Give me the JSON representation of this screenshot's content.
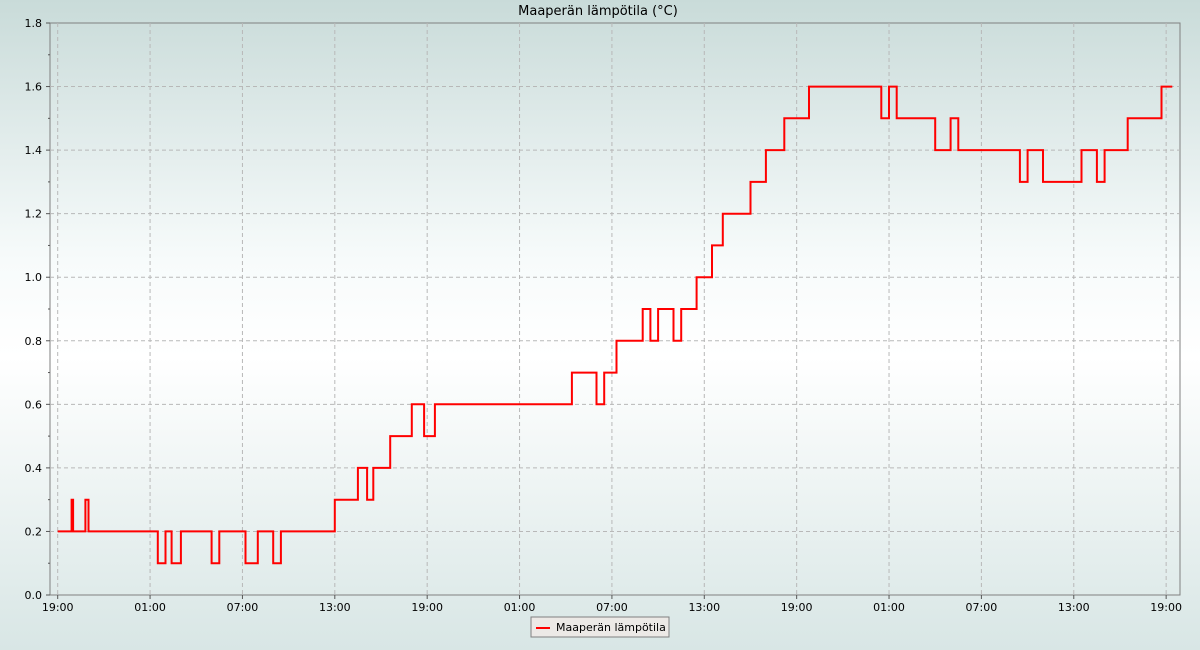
{
  "chart_data": {
    "type": "line",
    "title": "Maaperän lämpötila (°C)",
    "xlabel": "",
    "ylabel": "",
    "ylim": [
      0,
      1.8
    ],
    "yticks": [
      "0.0",
      "0.2",
      "0.4",
      "0.6",
      "0.8",
      "1.0",
      "1.2",
      "1.4",
      "1.6",
      "1.8"
    ],
    "xticks": [
      "19:00",
      "01:00",
      "07:00",
      "13:00",
      "19:00",
      "01:00",
      "07:00",
      "13:00",
      "19:00",
      "01:00",
      "07:00",
      "13:00",
      "19:00"
    ],
    "xtick_hours": [
      0,
      6,
      12,
      18,
      24,
      30,
      36,
      42,
      48,
      54,
      60,
      66,
      72
    ],
    "xlim_hours": [
      -0.5,
      72.9
    ],
    "grid": true,
    "legend_position": "bottom-center",
    "series": [
      {
        "name": "Maaperän lämpötila",
        "color": "#ff0000",
        "x_hours": [
          0,
          0.9,
          1.0,
          1.8,
          2.0,
          6.3,
          6.5,
          7.0,
          7.4,
          8.0,
          8.5,
          9.3,
          10.0,
          10.5,
          11.5,
          12.2,
          13.0,
          13.6,
          14.0,
          14.5,
          17.9,
          18.0,
          19.0,
          19.5,
          20.1,
          20.5,
          21.0,
          21.6,
          22.0,
          23.0,
          23.8,
          24.5,
          25.5,
          28.0,
          30.0,
          32.5,
          33.4,
          35.0,
          35.5,
          36.0,
          36.3,
          37.0,
          38.0,
          38.5,
          39.0,
          39.5,
          40.0,
          40.5,
          41.5,
          42.5,
          43.2,
          44.0,
          45.0,
          46.0,
          46.5,
          47.2,
          48.0,
          48.8,
          50.0,
          51.0,
          52.5,
          53.5,
          54.0,
          54.5,
          55.5,
          56.0,
          57.0,
          58.0,
          58.5,
          59.5,
          60.0,
          61.5,
          62.5,
          63.0,
          64.0,
          64.5,
          65.5,
          66.5,
          67.5,
          68.0,
          68.5,
          69.5,
          70.3,
          71.0,
          71.7,
          72.2
        ],
        "values": [
          0.2,
          0.3,
          0.2,
          0.3,
          0.2,
          0.2,
          0.1,
          0.2,
          0.1,
          0.2,
          0.2,
          0.2,
          0.1,
          0.2,
          0.2,
          0.1,
          0.2,
          0.2,
          0.1,
          0.2,
          0.2,
          0.3,
          0.3,
          0.4,
          0.3,
          0.4,
          0.4,
          0.5,
          0.5,
          0.6,
          0.5,
          0.6,
          0.6,
          0.6,
          0.6,
          0.6,
          0.7,
          0.6,
          0.7,
          0.7,
          0.8,
          0.8,
          0.9,
          0.8,
          0.9,
          0.9,
          0.8,
          0.9,
          1.0,
          1.1,
          1.2,
          1.2,
          1.3,
          1.4,
          1.4,
          1.5,
          1.5,
          1.6,
          1.6,
          1.6,
          1.6,
          1.5,
          1.6,
          1.5,
          1.5,
          1.5,
          1.4,
          1.5,
          1.4,
          1.4,
          1.4,
          1.4,
          1.3,
          1.4,
          1.3,
          1.3,
          1.3,
          1.4,
          1.3,
          1.4,
          1.4,
          1.5,
          1.5,
          1.5,
          1.6,
          1.6
        ]
      }
    ]
  }
}
